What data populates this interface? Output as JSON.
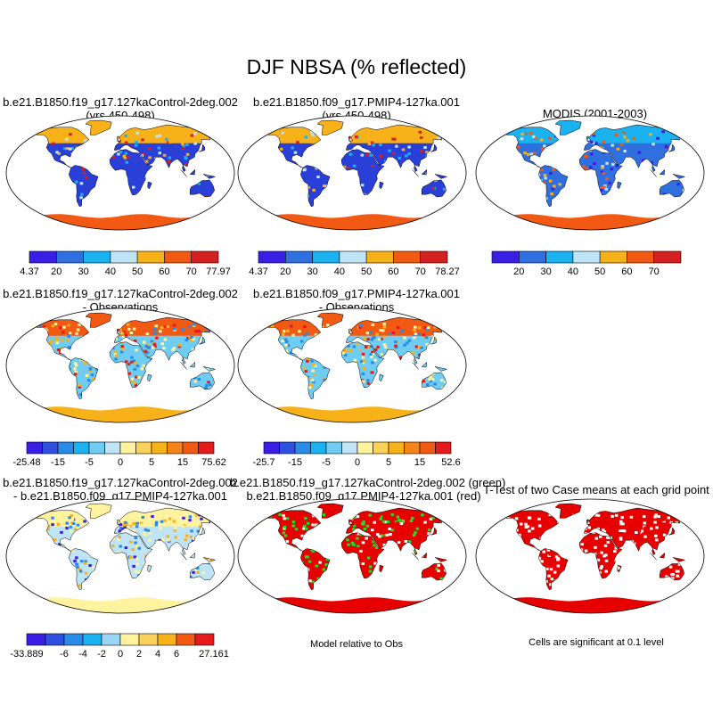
{
  "title": "DJF NBSA (% reflected)",
  "colors": {
    "land_default": "#2a3fd8",
    "outline": "#000000",
    "green": "#22dd22",
    "red": "#e60000"
  },
  "chart_data": [
    {
      "type": "heatmap",
      "title_line1": "b.e21.B1850.f19_g17.127kaControl-2deg.002",
      "title_line2": "(yrs 450-498)",
      "colorbar": {
        "labels": [
          "4.37",
          "20",
          "30",
          "40",
          "50",
          "60",
          "70",
          "77.97"
        ],
        "colors": [
          "#3a1ee6",
          "#2f6fe0",
          "#1ab2f0",
          "#bfe4f6",
          "#f7b21a",
          "#f25a14",
          "#d42020"
        ]
      }
    },
    {
      "type": "heatmap",
      "title_line1": "b.e21.B1850.f09_g17.PMIP4-127ka.001",
      "title_line2": "(yrs 450-498)",
      "colorbar": {
        "labels": [
          "4.37",
          "20",
          "30",
          "40",
          "50",
          "60",
          "70",
          "78.27"
        ],
        "colors": [
          "#3a1ee6",
          "#2f6fe0",
          "#1ab2f0",
          "#bfe4f6",
          "#f7b21a",
          "#f25a14",
          "#d42020"
        ]
      }
    },
    {
      "type": "heatmap",
      "title_line1": "MODIS (2001-2003)",
      "title_line2": "",
      "colorbar": {
        "labels": [
          "",
          "20",
          "30",
          "40",
          "50",
          "60",
          "70",
          ""
        ],
        "colors": [
          "#3a1ee6",
          "#2f6fe0",
          "#1ab2f0",
          "#bfe4f6",
          "#f7b21a",
          "#f25a14",
          "#d42020"
        ]
      }
    },
    {
      "type": "heatmap",
      "title_line1": "b.e21.B1850.f19_g17.127kaControl-2deg.002",
      "title_line2": "- Observations",
      "colorbar": {
        "labels": [
          "-25.48",
          "",
          "-15",
          "",
          "-5",
          "",
          "0",
          "",
          "5",
          "",
          "15",
          "",
          "75.62"
        ],
        "colors": [
          "#3a1ee6",
          "#2f4fe0",
          "#2a8ae8",
          "#1ab2f0",
          "#6fcdf3",
          "#bfe4f6",
          "#fff3a0",
          "#fad25a",
          "#f7b21a",
          "#f5831a",
          "#f25a14",
          "#e61a1a"
        ]
      }
    },
    {
      "type": "heatmap",
      "title_line1": "b.e21.B1850.f09_g17.PMIP4-127ka.001",
      "title_line2": "- Observations",
      "colorbar": {
        "labels": [
          "-25.7",
          "",
          "-15",
          "",
          "-5",
          "",
          "0",
          "",
          "5",
          "",
          "15",
          "",
          "52.6"
        ],
        "colors": [
          "#3a1ee6",
          "#2f4fe0",
          "#2a8ae8",
          "#1ab2f0",
          "#6fcdf3",
          "#bfe4f6",
          "#fff3a0",
          "#fad25a",
          "#f7b21a",
          "#f5831a",
          "#f25a14",
          "#e61a1a"
        ]
      }
    },
    {
      "type": "heatmap",
      "title_line1": "b.e21.B1850.f19_g17.127kaControl-2deg.002",
      "title_line2": "- b.e21.B1850.f09_g17.PMIP4-127ka.001",
      "colorbar": {
        "labels": [
          "-33.889",
          "",
          "-6",
          "-4",
          "-2",
          "0",
          "2",
          "4",
          "6",
          "",
          "27.161"
        ],
        "colors": [
          "#3a1ee6",
          "#2f4fe0",
          "#2a8ae8",
          "#1ab2f0",
          "#9ad6f3",
          "#fff3a0",
          "#fad25a",
          "#f7b21a",
          "#f25a14",
          "#e61a1a"
        ]
      }
    },
    {
      "type": "heatmap",
      "title_line1": "b.e21.B1850.f19_g17.127kaControl-2deg.002 (green)",
      "title_line2": "b.e21.B1850.f09_g17.PMIP4-127ka.001 (red)",
      "note": "Model relative to Obs"
    },
    {
      "type": "heatmap",
      "title_line1": "T-Test of two Case means at each grid point",
      "title_line2": "",
      "note": "Cells are significant at 0.1 level"
    }
  ]
}
